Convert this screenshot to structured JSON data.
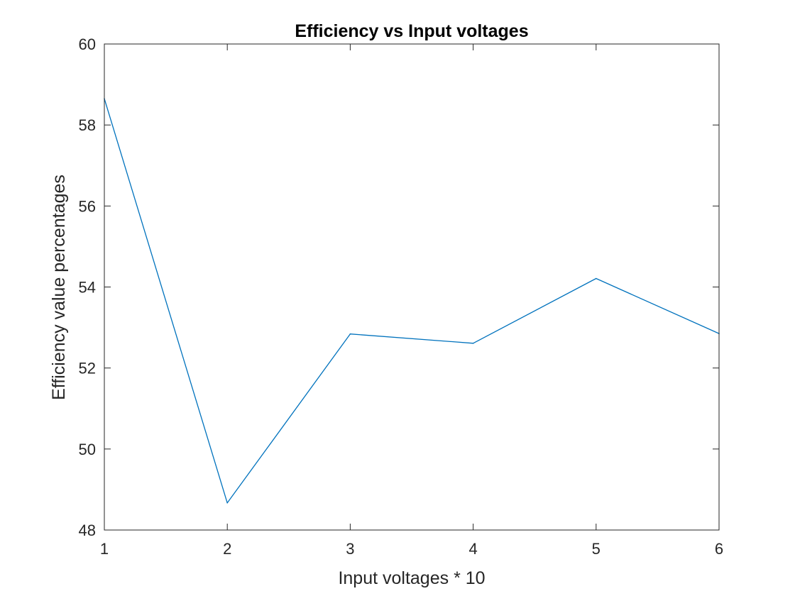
{
  "chart_data": {
    "type": "line",
    "title": "Efficiency vs Input voltages",
    "xlabel": "Input voltages * 10",
    "ylabel": "Efficiency value percentages",
    "xlim": [
      1,
      6
    ],
    "ylim": [
      48,
      60
    ],
    "x_ticks": [
      "1",
      "2",
      "3",
      "4",
      "5",
      "6"
    ],
    "y_ticks": [
      "48",
      "50",
      "52",
      "54",
      "56",
      "58",
      "60"
    ],
    "grid": false,
    "legend": "none",
    "series": [
      {
        "color": "#0072BD",
        "x": [
          1,
          2,
          3,
          4,
          5,
          6
        ],
        "y": [
          58.65,
          48.67,
          52.84,
          52.61,
          54.21,
          52.85
        ]
      }
    ]
  }
}
